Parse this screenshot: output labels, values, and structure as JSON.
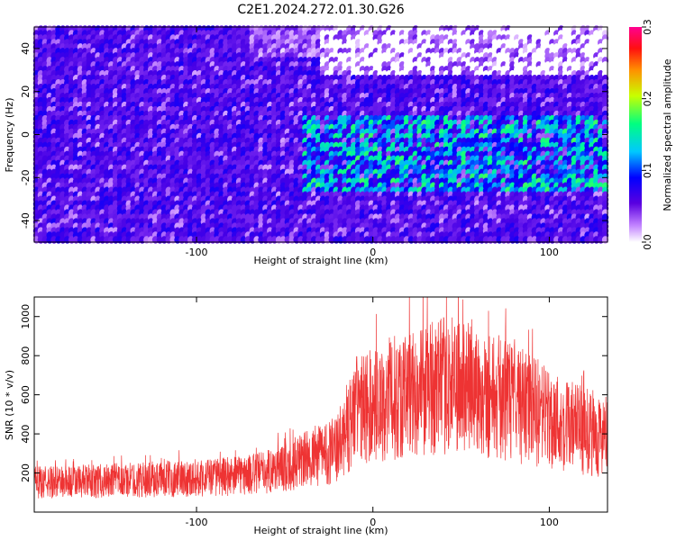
{
  "figure": {
    "title": "C2E1.2024.272.01.30.G26"
  },
  "chart_data": [
    {
      "type": "heatmap",
      "title": "C2E1.2024.272.01.30.G26",
      "xlabel": "Height of straight line (km)",
      "ylabel": "Frequency (Hz)",
      "xlim": [
        -192,
        133
      ],
      "ylim": [
        -50,
        50
      ],
      "xticks": [
        -100,
        0,
        100
      ],
      "yticks": [
        -40,
        -20,
        0,
        20,
        40
      ],
      "colorbar": {
        "label": "Normalized spectral amplitude",
        "range": [
          0.0,
          0.3
        ],
        "ticks": [
          "0.0",
          "0.1",
          "0.2",
          "0.3"
        ],
        "colors": [
          "#ffffff",
          "#b070ff",
          "#5a00e0",
          "#0000ff",
          "#00c8ff",
          "#00ff80",
          "#ffff00",
          "#ff6000",
          "#ff0080"
        ]
      },
      "description_bands": [
        {
          "x_range": [
            -192,
            133
          ],
          "freq_range": [
            -50,
            50
          ],
          "level": 0.05
        },
        {
          "x_range": [
            -40,
            133
          ],
          "freq_range": [
            -28,
            8
          ],
          "level": 0.12
        },
        {
          "x_range": [
            -40,
            133
          ],
          "freq_range": [
            25,
            50
          ],
          "level": 0.0
        }
      ]
    },
    {
      "type": "line",
      "xlabel": "Height of straight line (km)",
      "ylabel": "SNR (10 * v/v)",
      "xlim": [
        -192,
        133
      ],
      "ylim": [
        0,
        1100
      ],
      "xticks": [
        -100,
        0,
        100
      ],
      "yticks": [
        200,
        400,
        600,
        800,
        1000
      ],
      "color": "#ee3333",
      "envelope": {
        "x": [
          -192,
          -150,
          -100,
          -70,
          -50,
          -35,
          -20,
          -15,
          -10,
          0,
          10,
          25,
          45,
          60,
          80,
          100,
          115,
          133
        ],
        "y": [
          150,
          160,
          175,
          190,
          230,
          280,
          320,
          420,
          520,
          540,
          580,
          620,
          650,
          620,
          560,
          480,
          430,
          380
        ]
      }
    }
  ]
}
